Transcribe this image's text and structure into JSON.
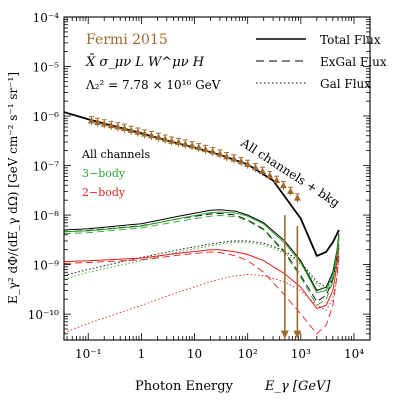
{
  "chart_data": {
    "type": "line",
    "xlabel": "Photon Energy",
    "xlabel_symbol": "E_γ [GeV]",
    "ylabel": "E_γ² dΦ/(dE_γ dΩ) [GeV cm⁻² s⁻¹ sr⁻¹]",
    "xscale": "log",
    "yscale": "log",
    "xlim": [
      0.035,
      20000
    ],
    "ylim": [
      3e-11,
      0.0001
    ],
    "x_ticks": [
      0.1,
      1,
      10,
      100,
      1000,
      10000
    ],
    "x_tick_labels": [
      "10⁻¹",
      "1",
      "10",
      "10²",
      "10³",
      "10⁴"
    ],
    "y_ticks": [
      1e-10,
      1e-09,
      1e-08,
      1e-07,
      1e-06,
      1e-05,
      0.0001
    ],
    "y_tick_labels": [
      "10⁻¹⁰",
      "10⁻⁹",
      "10⁻⁸",
      "10⁻⁷",
      "10⁻⁶",
      "10⁻⁵",
      "10⁻⁴"
    ],
    "legend_placement": "top-right",
    "legend": [
      {
        "label": "Total Flux",
        "dash": "solid"
      },
      {
        "label": "ExGal Flux",
        "dash": "dashed"
      },
      {
        "label": "Gal Flux",
        "dash": "dotted"
      }
    ],
    "annotations": {
      "dataset": "Fermi 2015",
      "operator": "X̄ σ_μν L W^μν H",
      "lambda": "Λ₂² = 7.78 × 10¹⁶ GeV",
      "all_channels": "All channels",
      "three_body": "3−body",
      "two_body": "2−body",
      "bkg": "All channels + bkg"
    },
    "colors": {
      "data": "#a0692c",
      "all": "#000000",
      "three_body": "#2aa52a",
      "two_body": "#e02020",
      "bkg": "#000000"
    },
    "series": [
      {
        "name": "Fermi 2015",
        "kind": "data",
        "color": "#a0692c",
        "x": [
          0.115,
          0.15,
          0.2,
          0.27,
          0.36,
          0.48,
          0.64,
          0.86,
          1.15,
          1.55,
          2.1,
          2.8,
          3.7,
          5.0,
          6.7,
          9.0,
          12,
          16,
          22,
          30,
          40,
          55,
          75,
          100,
          140,
          190,
          260,
          350,
          470,
          640,
          860
        ],
        "y": [
          8e-07,
          7.4e-07,
          6.9e-07,
          6.4e-07,
          6e-07,
          5.6e-07,
          5.1e-07,
          4.7e-07,
          4.3e-07,
          4e-07,
          3.7e-07,
          3.4e-07,
          3.1e-07,
          2.9e-07,
          2.7e-07,
          2.5e-07,
          2.3e-07,
          2.1e-07,
          1.9e-07,
          1.7e-07,
          1.5e-07,
          1.35e-07,
          1.2e-07,
          1.05e-07,
          9e-08,
          7.6e-08,
          6.2e-08,
          5e-08,
          3.9e-08,
          3e-08,
          2.2e-08
        ]
      },
      {
        "name": "All channels + bkg",
        "kind": "total",
        "color": "#000000",
        "dash": "solid",
        "width": 1.8,
        "x": [
          0.035,
          0.1,
          0.3,
          1,
          3,
          10,
          30,
          100,
          300,
          1000,
          2000,
          3000,
          4000,
          4800,
          5200
        ],
        "y": [
          1.2e-06,
          8.6e-07,
          6.3e-07,
          4.5e-07,
          3.2e-07,
          2.3e-07,
          1.65e-07,
          1.05e-07,
          5e-08,
          8.5e-09,
          1.5e-09,
          1.8e-09,
          2.8e-09,
          4.2e-09,
          5e-09
        ]
      },
      {
        "name": "All channels total",
        "kind": "total",
        "color": "#000000",
        "dash": "solid",
        "width": 1,
        "x": [
          0.035,
          0.1,
          1,
          5,
          20,
          30,
          60,
          100,
          200,
          500,
          1000,
          2000,
          3000,
          4000,
          4800,
          5200
        ],
        "y": [
          5e-09,
          5.3e-09,
          6.7e-09,
          9.5e-09,
          1.25e-08,
          1.28e-08,
          1.2e-08,
          1e-08,
          7e-09,
          3e-09,
          1.2e-09,
          3e-10,
          3.5e-10,
          7e-10,
          2e-09,
          4.2e-09
        ]
      },
      {
        "name": "All channels ExGal",
        "kind": "exgal",
        "color": "#000000",
        "dash": "dashed",
        "width": 0.9,
        "x": [
          0.035,
          0.1,
          1,
          5,
          20,
          30,
          60,
          100,
          200,
          500,
          1000,
          2000,
          3000,
          4000,
          4800,
          5200
        ],
        "y": [
          4.6e-09,
          4.9e-09,
          6.1e-09,
          8.4e-09,
          1.05e-08,
          1.08e-08,
          1e-08,
          8e-09,
          5.2e-09,
          1.8e-09,
          6e-10,
          1.8e-10,
          2.4e-10,
          5e-10,
          1.5e-09,
          3.5e-09
        ]
      },
      {
        "name": "All channels Gal",
        "kind": "gal",
        "color": "#000000",
        "dash": "dotted",
        "width": 0.9,
        "x": [
          0.035,
          0.1,
          1,
          5,
          20,
          50,
          100,
          200,
          500,
          1000,
          2000,
          3000,
          4000,
          4800,
          5200
        ],
        "y": [
          6e-10,
          8e-10,
          1.4e-09,
          2e-09,
          2.6e-09,
          3e-09,
          3e-09,
          2.7e-09,
          1.9e-09,
          1.1e-09,
          4.5e-10,
          3.5e-10,
          5e-10,
          1.2e-09,
          2.5e-09
        ]
      },
      {
        "name": "3-body total",
        "kind": "total",
        "color": "#2aa52a",
        "dash": "solid",
        "width": 1,
        "x": [
          0.035,
          0.1,
          1,
          5,
          20,
          30,
          60,
          100,
          200,
          500,
          1000,
          2000,
          3000,
          4000,
          4800,
          5200
        ],
        "y": [
          4.6e-09,
          4.8e-09,
          6e-09,
          8.5e-09,
          1.12e-08,
          1.15e-08,
          1.1e-08,
          9.5e-09,
          6.6e-09,
          2.7e-09,
          1.1e-09,
          2.7e-10,
          3e-10,
          6e-10,
          1.8e-09,
          3.8e-09
        ]
      },
      {
        "name": "3-body ExGal",
        "kind": "exgal",
        "color": "#2aa52a",
        "dash": "dashed",
        "width": 0.9,
        "x": [
          0.035,
          0.1,
          1,
          5,
          20,
          30,
          60,
          100,
          200,
          500,
          1000,
          2000,
          3000,
          4000,
          4800,
          5200
        ],
        "y": [
          4.2e-09,
          4.4e-09,
          5.5e-09,
          7.5e-09,
          9.5e-09,
          9.8e-09,
          9.3e-09,
          7.6e-09,
          5e-09,
          1.7e-09,
          5.5e-10,
          1.5e-10,
          2e-10,
          4.5e-10,
          1.4e-09,
          3.2e-09
        ]
      },
      {
        "name": "3-body Gal",
        "kind": "gal",
        "color": "#2aa52a",
        "dash": "dotted",
        "width": 0.9,
        "x": [
          0.035,
          0.1,
          1,
          5,
          20,
          50,
          100,
          200,
          500,
          1000,
          2000,
          3000,
          4000,
          4800,
          5200
        ],
        "y": [
          5e-10,
          7e-10,
          1.2e-09,
          1.8e-09,
          2.4e-09,
          2.8e-09,
          2.8e-09,
          2.5e-09,
          1.7e-09,
          1e-09,
          4e-10,
          3e-10,
          4.5e-10,
          1.1e-09,
          2.3e-09
        ]
      },
      {
        "name": "2-body total",
        "kind": "total",
        "color": "#e02020",
        "dash": "solid",
        "width": 1,
        "x": [
          0.035,
          0.1,
          1,
          5,
          20,
          30,
          60,
          100,
          200,
          500,
          1000,
          2000,
          3000,
          4000,
          4800,
          5200
        ],
        "y": [
          1.15e-09,
          1.2e-09,
          1.35e-09,
          1.7e-09,
          2e-09,
          2e-09,
          1.8e-09,
          1.6e-09,
          1.2e-09,
          6.5e-10,
          3.5e-10,
          1.3e-10,
          1.5e-10,
          3e-10,
          1e-09,
          2.2e-09
        ]
      },
      {
        "name": "2-body ExGal",
        "kind": "exgal",
        "color": "#e02020",
        "dash": "dashed",
        "width": 0.9,
        "x": [
          0.035,
          0.1,
          1,
          5,
          20,
          30,
          60,
          100,
          200,
          500,
          1000,
          2000,
          3000,
          4000,
          4800,
          5200
        ],
        "y": [
          1.05e-09,
          1.1e-09,
          1.25e-09,
          1.55e-09,
          1.8e-09,
          1.75e-09,
          1.5e-09,
          1.2e-09,
          7e-10,
          2.4e-10,
          1e-10,
          4e-11,
          6e-11,
          1.5e-10,
          6e-10,
          1.5e-09
        ]
      },
      {
        "name": "2-body Gal",
        "kind": "gal",
        "color": "#e02020",
        "dash": "dotted",
        "width": 0.9,
        "x": [
          0.035,
          0.1,
          1,
          5,
          20,
          50,
          100,
          200,
          500,
          1000,
          2000,
          3000,
          4000,
          4800,
          5200
        ],
        "y": [
          4.2e-11,
          6.5e-11,
          1.5e-10,
          2.8e-10,
          4.5e-10,
          5.8e-10,
          6.3e-10,
          6e-10,
          4.5e-10,
          3e-10,
          1.5e-10,
          1.2e-10,
          2e-10,
          6e-10,
          1.4e-09
        ]
      },
      {
        "name": "Fermi upper-limit arrows",
        "kind": "arrows",
        "color": "#a0692c",
        "x": [
          500,
          860
        ],
        "y_from": [
          1e-08,
          6e-09
        ],
        "y_to": [
          3.2e-11,
          3.2e-11
        ]
      }
    ]
  }
}
